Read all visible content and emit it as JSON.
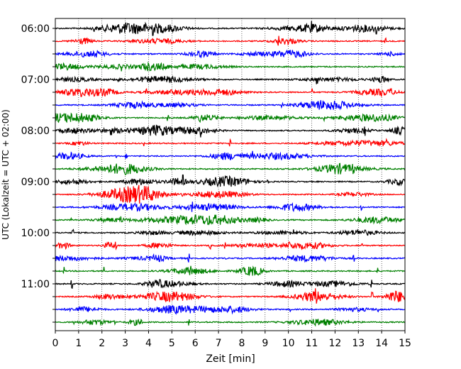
{
  "chart_data": {
    "type": "line",
    "title": "",
    "xlabel": "Zeit  [min]",
    "ylabel": "UTC (Lokalzeit = UTC + 02:00)",
    "xlim": [
      0,
      15
    ],
    "x_ticks": [
      "0",
      "1",
      "2",
      "3",
      "4",
      "5",
      "6",
      "7",
      "8",
      "9",
      "10",
      "11",
      "12",
      "13",
      "14",
      "15"
    ],
    "grid": "vertical-dotted",
    "series_colors": [
      "#000000",
      "#ff0000",
      "#0000ff",
      "#008000"
    ],
    "traces": [
      {
        "start": "06:00",
        "color": "#000000"
      },
      {
        "start": "06:15",
        "color": "#ff0000"
      },
      {
        "start": "06:30",
        "color": "#0000ff"
      },
      {
        "start": "06:45",
        "color": "#008000"
      },
      {
        "start": "07:00",
        "color": "#000000"
      },
      {
        "start": "07:15",
        "color": "#ff0000"
      },
      {
        "start": "07:30",
        "color": "#0000ff"
      },
      {
        "start": "07:45",
        "color": "#008000"
      },
      {
        "start": "08:00",
        "color": "#000000"
      },
      {
        "start": "08:15",
        "color": "#ff0000"
      },
      {
        "start": "08:30",
        "color": "#0000ff"
      },
      {
        "start": "08:45",
        "color": "#008000"
      },
      {
        "start": "09:00",
        "color": "#000000"
      },
      {
        "start": "09:15",
        "color": "#ff0000"
      },
      {
        "start": "09:30",
        "color": "#0000ff"
      },
      {
        "start": "09:45",
        "color": "#008000"
      },
      {
        "start": "10:00",
        "color": "#000000"
      },
      {
        "start": "10:15",
        "color": "#ff0000"
      },
      {
        "start": "10:30",
        "color": "#0000ff"
      },
      {
        "start": "10:45",
        "color": "#008000"
      },
      {
        "start": "11:00",
        "color": "#000000"
      },
      {
        "start": "11:15",
        "color": "#ff0000"
      },
      {
        "start": "11:30",
        "color": "#0000ff"
      },
      {
        "start": "11:45",
        "color": "#008000"
      }
    ],
    "y_tick_labels": [
      "06:00",
      "07:00",
      "08:00",
      "09:00",
      "10:00",
      "11:00"
    ]
  }
}
